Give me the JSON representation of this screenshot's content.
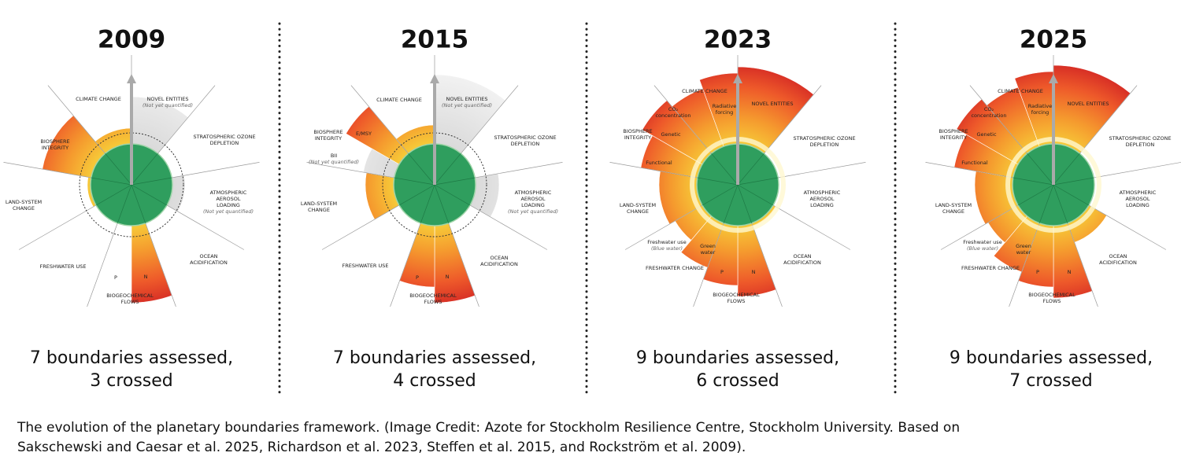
{
  "panels": [
    {
      "year": "2009",
      "labels": [
        {
          "lines": [
            "CLIMATE CHANGE"
          ]
        },
        {
          "lines": [
            "NOVEL ENTITIES",
            "(Not yet quantified)"
          ]
        },
        {
          "lines": [
            "STRATOSPHERIC OZONE",
            "DEPLETION"
          ]
        },
        {
          "lines": [
            "ATMOSPHERIC",
            "AEROSOL",
            "LOADING",
            "(Not yet quantified)"
          ]
        },
        {
          "lines": [
            "OCEAN",
            "ACIDIFICATION"
          ]
        },
        {
          "lines": [
            "BIOGEOCHEMICAL",
            "FLOWS"
          ]
        },
        {
          "lines": [
            "FRESHWATER USE"
          ]
        },
        {
          "lines": [
            "LAND-SYSTEM",
            "CHANGE"
          ]
        },
        {
          "lines": [
            "BIOSPHERE",
            "INTEGRITY"
          ]
        },
        {
          "lines": [
            "P"
          ]
        },
        {
          "lines": [
            "N"
          ]
        }
      ],
      "summary": [
        "7 boundaries assessed,",
        "3 crossed"
      ]
    },
    {
      "year": "2015",
      "labels": [
        {
          "lines": [
            "CLIMATE CHANGE"
          ]
        },
        {
          "lines": [
            "NOVEL ENTITIES",
            "(Not yet quantified)"
          ]
        },
        {
          "lines": [
            "STRATOSPHERIC OZONE",
            "DEPLETION"
          ]
        },
        {
          "lines": [
            "ATMOSPHERIC",
            "AEROSOL",
            "LOADING",
            "(Not yet quantified)"
          ]
        },
        {
          "lines": [
            "OCEAN",
            "ACIDIFICATION"
          ]
        },
        {
          "lines": [
            "BIOGEOCHEMICAL",
            "FLOWS"
          ]
        },
        {
          "lines": [
            "FRESHWATER USE"
          ]
        },
        {
          "lines": [
            "LAND-SYSTEM",
            "CHANGE"
          ]
        },
        {
          "lines": [
            "BIOSPHERE",
            "INTEGRITY"
          ]
        },
        {
          "lines": [
            "E/MSY"
          ]
        },
        {
          "lines": [
            "BII",
            "(Not yet quantified)"
          ]
        },
        {
          "lines": [
            "P"
          ]
        },
        {
          "lines": [
            "N"
          ]
        }
      ],
      "summary": [
        "7 boundaries assessed,",
        "4 crossed"
      ]
    },
    {
      "year": "2023",
      "labels": [
        {
          "lines": [
            "CLIMATE CHANGE"
          ]
        },
        {
          "lines": [
            "CO₂",
            "concentration"
          ]
        },
        {
          "lines": [
            "Radiative",
            "forcing"
          ]
        },
        {
          "lines": [
            "NOVEL ENTITIES"
          ]
        },
        {
          "lines": [
            "STRATOSPHERIC OZONE",
            "DEPLETION"
          ]
        },
        {
          "lines": [
            "ATMOSPHERIC",
            "AEROSOL",
            "LOADING"
          ]
        },
        {
          "lines": [
            "OCEAN",
            "ACIDIFICATION"
          ]
        },
        {
          "lines": [
            "BIOGEOCHEMICAL",
            "FLOWS"
          ]
        },
        {
          "lines": [
            "FRESHWATER CHANGE"
          ]
        },
        {
          "lines": [
            "Freshwater use",
            "(Blue water)"
          ]
        },
        {
          "lines": [
            "Green",
            "water"
          ]
        },
        {
          "lines": [
            "LAND-SYSTEM",
            "CHANGE"
          ]
        },
        {
          "lines": [
            "BIOSPHERE",
            "INTEGRITY"
          ]
        },
        {
          "lines": [
            "Genetic"
          ]
        },
        {
          "lines": [
            "Functional"
          ]
        },
        {
          "lines": [
            "P"
          ]
        },
        {
          "lines": [
            "N"
          ]
        }
      ],
      "summary": [
        "9 boundaries assessed,",
        "6 crossed"
      ]
    },
    {
      "year": "2025",
      "labels": [
        {
          "lines": [
            "CLIMATE CHANGE"
          ]
        },
        {
          "lines": [
            "CO₂",
            "concentration"
          ]
        },
        {
          "lines": [
            "Radiative",
            "forcing"
          ]
        },
        {
          "lines": [
            "NOVEL ENTITIES"
          ]
        },
        {
          "lines": [
            "STRATOSPHERIC OZONE",
            "DEPLETION"
          ]
        },
        {
          "lines": [
            "ATMOSPHERIC",
            "AEROSOL",
            "LOADING"
          ]
        },
        {
          "lines": [
            "OCEAN",
            "ACIDIFICATION"
          ]
        },
        {
          "lines": [
            "BIOGEOCHEMICAL",
            "FLOWS"
          ]
        },
        {
          "lines": [
            "FRESHWATER CHANGE"
          ]
        },
        {
          "lines": [
            "Freshwater use",
            "(Blue water)"
          ]
        },
        {
          "lines": [
            "Green",
            "water"
          ]
        },
        {
          "lines": [
            "LAND-SYSTEM",
            "CHANGE"
          ]
        },
        {
          "lines": [
            "BIOSPHERE",
            "INTEGRITY"
          ]
        },
        {
          "lines": [
            "Genetic"
          ]
        },
        {
          "lines": [
            "Functional"
          ]
        },
        {
          "lines": [
            "P"
          ]
        },
        {
          "lines": [
            "N"
          ]
        }
      ],
      "summary": [
        "9 boundaries assessed,",
        "7 crossed"
      ]
    }
  ],
  "caption": [
    "The evolution of the planetary boundaries framework. (Image Credit: Azote for Stockholm Resilience Centre, Stockholm University. Based on",
    "Sakschewski and Caesar et al. 2025, Richardson et al. 2023, Steffen et al. 2015, and Rockström et al. 2009)."
  ]
}
